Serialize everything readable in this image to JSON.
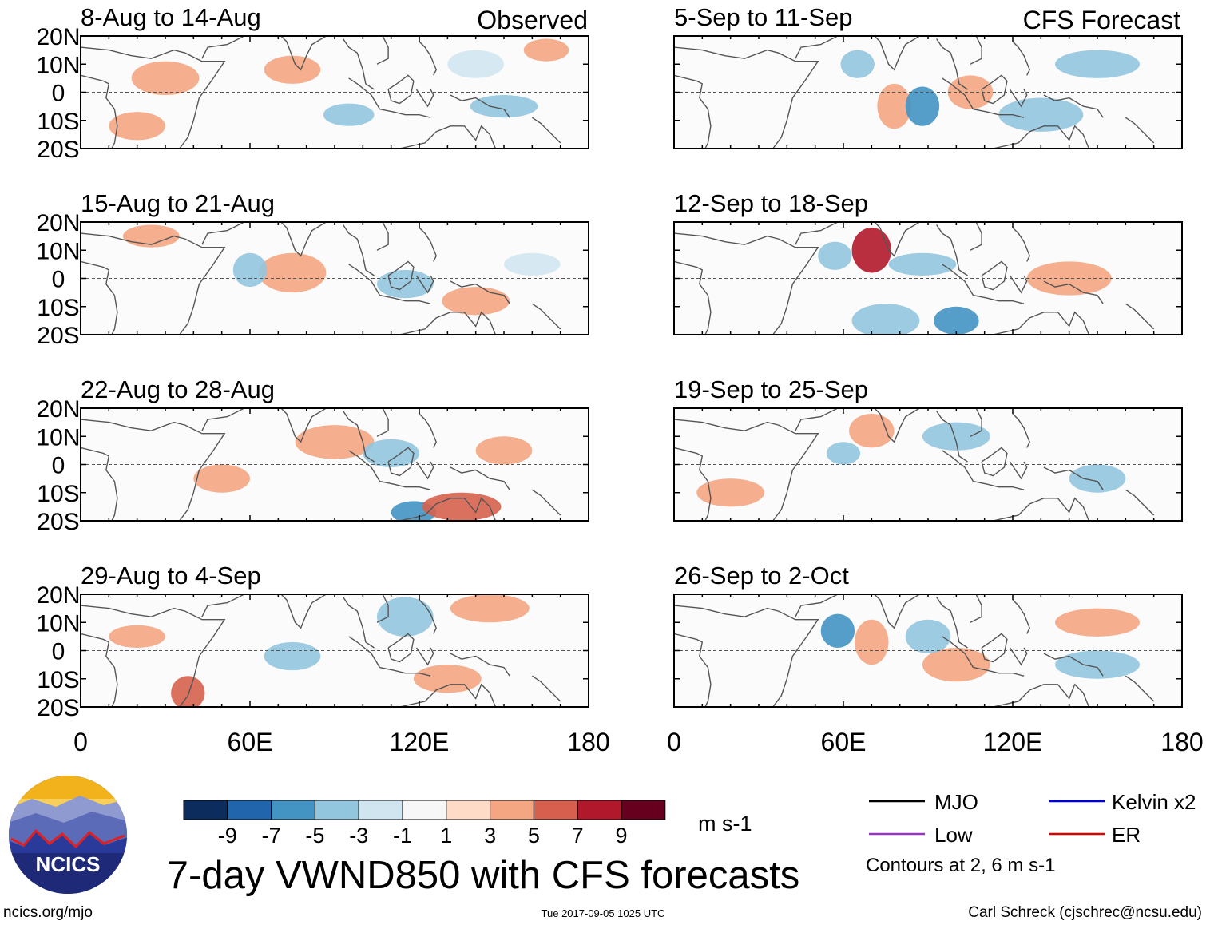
{
  "header": {
    "observed_label": "Observed",
    "forecast_label": "CFS Forecast"
  },
  "chart_data": {
    "type": "heatmap",
    "title": "7-day VWND850 with CFS forecasts",
    "variable": "VWND850",
    "units": "m s-1",
    "x_ticks": [
      "0",
      "60E",
      "120E",
      "180"
    ],
    "x_range": [
      0,
      180
    ],
    "y_ticks": [
      "20N",
      "10N",
      "0",
      "10S",
      "20S"
    ],
    "y_range": [
      -20,
      20
    ],
    "panels": [
      {
        "column": "Observed",
        "title": "8-Aug to 14-Aug"
      },
      {
        "column": "Observed",
        "title": "15-Aug to 21-Aug"
      },
      {
        "column": "Observed",
        "title": "22-Aug to 28-Aug"
      },
      {
        "column": "Observed",
        "title": "29-Aug to 4-Sep"
      },
      {
        "column": "CFS Forecast",
        "title": "5-Sep to 11-Sep"
      },
      {
        "column": "CFS Forecast",
        "title": "12-Sep to 18-Sep"
      },
      {
        "column": "CFS Forecast",
        "title": "19-Sep to 25-Sep"
      },
      {
        "column": "CFS Forecast",
        "title": "26-Sep to 2-Oct"
      }
    ],
    "colorbar": {
      "labels": [
        "-9",
        "-7",
        "-5",
        "-3",
        "-1",
        "1",
        "3",
        "5",
        "7",
        "9"
      ],
      "colors": [
        "#0b2c5c",
        "#2166ac",
        "#4393c3",
        "#92c5de",
        "#d1e5f0",
        "#f7f7f7",
        "#fddbc7",
        "#f4a582",
        "#d6604d",
        "#b2182b",
        "#67001f"
      ]
    },
    "legend": [
      {
        "label": "MJO",
        "color": "#000000"
      },
      {
        "label": "Kelvin x2",
        "color": "#0000cc"
      },
      {
        "label": "Low",
        "color": "#9933cc"
      },
      {
        "label": "ER",
        "color": "#dd0000"
      }
    ],
    "contour_note": "Contours at 2, 6 m s-1"
  },
  "footer": {
    "logo_text": "NCICS",
    "website": "ncics.org/mjo",
    "timestamp": "Tue 2017-09-05 1025 UTC",
    "credit": "Carl Schreck (cjschrec@ncsu.edu)"
  }
}
